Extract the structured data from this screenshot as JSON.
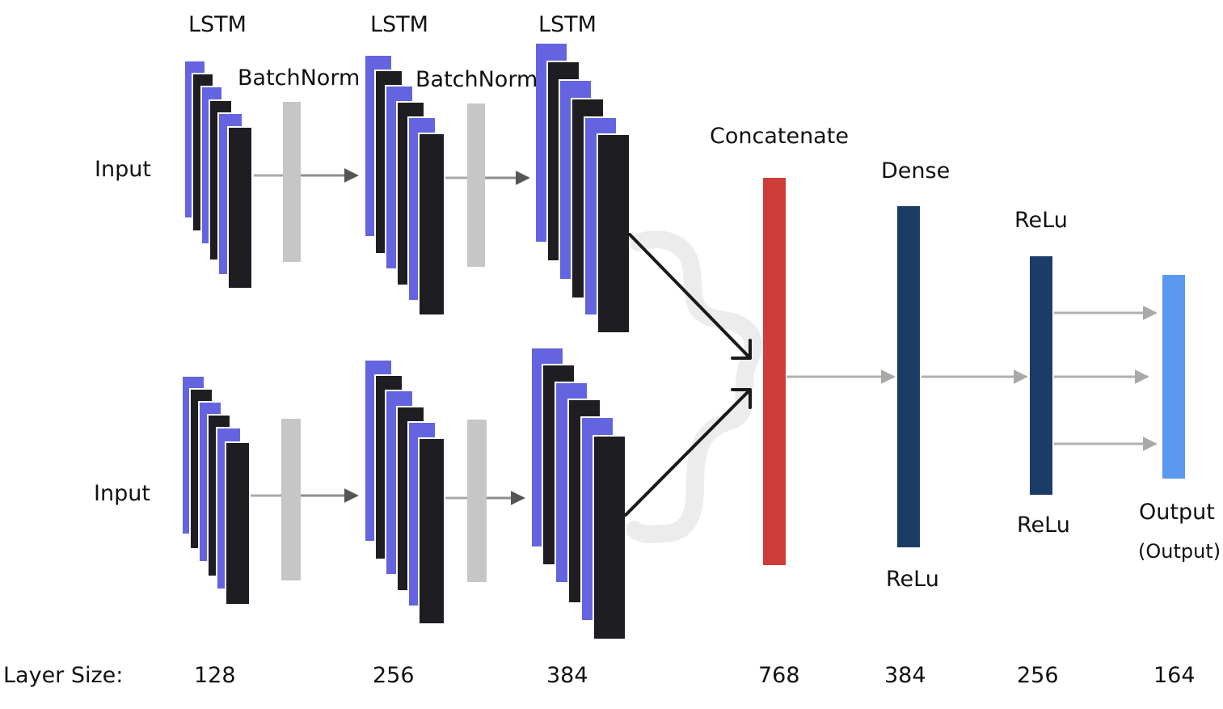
{
  "colors": {
    "lstm_blue": "#6464e0",
    "lstm_black": "#1e1e22",
    "batchnorm_gray": "#c6c6c6",
    "concat_red": "#d03c3a",
    "dense_navy": "#1b3c66",
    "output_blue": "#5b98f0",
    "arrow_gray": "#a9a9a9",
    "arrow_dark": "#1a1a1a"
  },
  "labels": {
    "input_top": "Input",
    "input_bottom": "Input",
    "lstm_1": "LSTM",
    "lstm_2": "LSTM",
    "lstm_3": "LSTM",
    "batchnorm_1": "BatchNorm",
    "batchnorm_2": "BatchNorm",
    "concatenate": "Concatenate",
    "dense": "Dense",
    "dense_activation": "ReLu",
    "relu_top": "ReLu",
    "relu_bottom": "ReLu",
    "output": "Output",
    "output_sub": "(Output)"
  },
  "layer_sizes": {
    "label": "Layer Size:",
    "values": [
      "128",
      "256",
      "384",
      "768",
      "384",
      "256",
      "164"
    ]
  }
}
